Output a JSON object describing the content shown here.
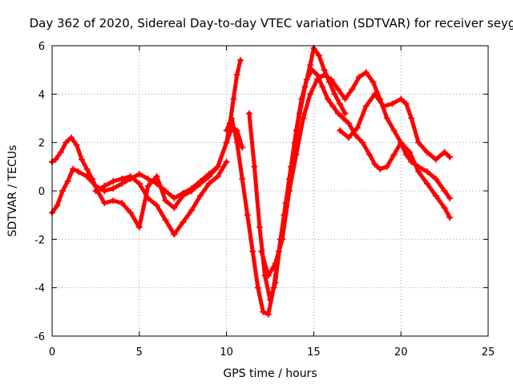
{
  "chart_data": {
    "type": "scatter",
    "title": "Day 362 of 2020, Sidereal Day-to-day VTEC variation (SDTVAR) for receiver seyg",
    "xlabel": "GPS time / hours",
    "ylabel": "SDTVAR / TECUs",
    "xlim": [
      0,
      25
    ],
    "ylim": [
      -6,
      6
    ],
    "xticks": [
      "0",
      "5",
      "10",
      "15",
      "20",
      "25"
    ],
    "yticks": [
      "-6",
      "-4",
      "-2",
      "0",
      "2",
      "4",
      "6"
    ],
    "grid": true,
    "marker": "plus",
    "color": "#ff0000",
    "series": [
      {
        "x": [
          0.0,
          0.2,
          0.5,
          0.8,
          1.1,
          1.4,
          1.7,
          2.0,
          2.3,
          2.6,
          3.0,
          3.5,
          4.0,
          4.5,
          5.0,
          5.5,
          6.0,
          6.5,
          7.0,
          7.5,
          8.0,
          8.5,
          9.0,
          9.5,
          10.0,
          10.2,
          10.4,
          10.6,
          10.8
        ],
        "y": [
          1.2,
          1.3,
          1.6,
          2.0,
          2.2,
          1.9,
          1.3,
          0.9,
          0.5,
          0.0,
          -0.5,
          -0.4,
          -0.5,
          -0.9,
          -1.5,
          0.2,
          0.6,
          -0.4,
          -0.7,
          -0.2,
          0.0,
          0.3,
          0.6,
          1.0,
          2.0,
          2.8,
          3.8,
          4.8,
          5.4
        ]
      },
      {
        "x": [
          0.0,
          0.3,
          0.6,
          0.9,
          1.2,
          1.5,
          2.0,
          2.5,
          3.0,
          3.5,
          4.0,
          4.5,
          5.0,
          5.5,
          6.0,
          6.5,
          7.0,
          7.5,
          8.0,
          8.5,
          9.0,
          9.5,
          10.0,
          10.3,
          10.6,
          10.9
        ],
        "y": [
          -0.9,
          -0.6,
          0.0,
          0.4,
          0.9,
          0.8,
          0.6,
          0.2,
          0.0,
          0.1,
          0.3,
          0.5,
          0.7,
          0.5,
          0.3,
          0.0,
          -0.3,
          -0.1,
          0.1,
          0.4,
          0.7,
          1.0,
          2.0,
          2.6,
          2.5,
          1.8
        ]
      },
      {
        "x": [
          2.5,
          3.0,
          3.5,
          4.0,
          4.5,
          5.0,
          5.5,
          6.0,
          6.5,
          7.0,
          7.5,
          8.0,
          8.5,
          9.0,
          9.5,
          10.0
        ],
        "y": [
          0.0,
          0.2,
          0.4,
          0.5,
          0.6,
          0.3,
          -0.3,
          -0.6,
          -1.2,
          -1.8,
          -1.3,
          -0.8,
          -0.2,
          0.3,
          0.6,
          1.2
        ]
      },
      {
        "x": [
          10.0,
          10.3,
          10.6,
          10.9,
          11.2,
          11.5,
          11.8,
          12.1,
          12.4,
          12.7,
          13.0,
          13.3,
          13.6,
          13.9,
          14.2,
          14.5,
          14.8,
          15.0,
          15.3,
          15.6,
          15.9,
          16.2,
          16.5,
          16.8
        ],
        "y": [
          2.5,
          3.0,
          2.0,
          0.5,
          -1.0,
          -2.5,
          -4.0,
          -5.0,
          -5.1,
          -4.0,
          -2.5,
          -1.0,
          0.5,
          2.0,
          3.2,
          4.3,
          5.2,
          5.9,
          5.6,
          5.0,
          4.5,
          4.0,
          3.6,
          3.2
        ]
      },
      {
        "x": [
          11.3,
          11.6,
          11.9,
          12.2,
          12.5,
          12.8,
          13.1,
          13.4,
          13.7,
          14.0,
          14.3,
          14.6,
          14.9,
          15.2,
          15.5,
          15.8,
          16.1,
          16.4,
          16.7,
          17.0,
          17.4,
          17.8,
          18.2,
          18.5,
          18.8,
          19.2,
          19.6,
          20.0,
          20.5,
          21.0,
          21.5,
          22.0,
          22.5,
          22.8
        ],
        "y": [
          3.2,
          1.0,
          -1.5,
          -3.5,
          -4.5,
          -3.8,
          -2.0,
          -0.5,
          1.0,
          2.5,
          3.8,
          4.6,
          5.0,
          4.8,
          4.3,
          3.8,
          3.5,
          3.2,
          3.0,
          2.8,
          2.3,
          2.0,
          1.5,
          1.1,
          0.9,
          1.0,
          1.5,
          2.0,
          1.6,
          0.8,
          0.3,
          -0.2,
          -0.7,
          -1.1
        ]
      },
      {
        "x": [
          12.0,
          12.4,
          12.8,
          13.2,
          13.6,
          14.0,
          14.4,
          14.8,
          15.2,
          15.6,
          16.0,
          16.4,
          16.8,
          17.2,
          17.6,
          18.0,
          18.4,
          18.8,
          19.2,
          19.6,
          20.0,
          20.3,
          20.6,
          21.0,
          21.5,
          22.0,
          22.5,
          22.8
        ],
        "y": [
          -2.5,
          -3.5,
          -3.0,
          -2.0,
          0.0,
          1.5,
          3.0,
          4.0,
          4.6,
          4.8,
          4.6,
          4.2,
          3.8,
          4.2,
          4.7,
          4.9,
          4.5,
          3.8,
          3.0,
          2.5,
          2.0,
          1.5,
          1.2,
          1.0,
          0.8,
          0.5,
          0.0,
          -0.3
        ]
      },
      {
        "x": [
          16.5,
          17.0,
          17.5,
          18.0,
          18.5,
          19.0,
          19.5,
          20.0,
          20.3,
          20.6,
          21.0,
          21.5,
          22.0,
          22.5,
          22.8
        ],
        "y": [
          2.5,
          2.2,
          2.6,
          3.5,
          4.0,
          3.5,
          3.6,
          3.8,
          3.6,
          3.0,
          2.0,
          1.6,
          1.3,
          1.6,
          1.4
        ]
      }
    ]
  }
}
